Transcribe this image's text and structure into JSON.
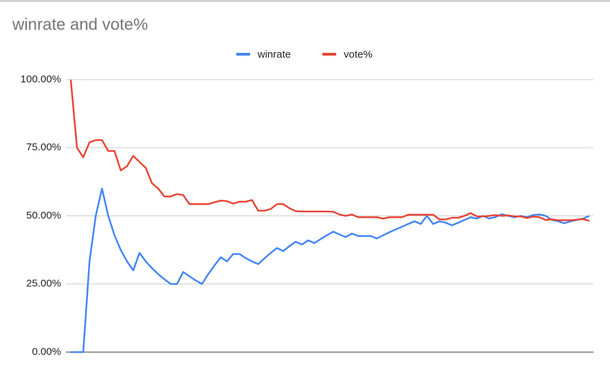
{
  "chart_data": {
    "type": "line",
    "title": "winrate and vote%",
    "categories": [
      null,
      null,
      null,
      null,
      null,
      null,
      null,
      null,
      null,
      null,
      null,
      null,
      null,
      null,
      null,
      null,
      null,
      null,
      null,
      null,
      null,
      null,
      null,
      null,
      null,
      null,
      null,
      null,
      null,
      null,
      null,
      null,
      null,
      null,
      null,
      null,
      null,
      null,
      null,
      null,
      null,
      null,
      null,
      null,
      null,
      null,
      null,
      null,
      null,
      null,
      null,
      null,
      null,
      null,
      null,
      null,
      null,
      null,
      null,
      null,
      null,
      null,
      null,
      null,
      null,
      null,
      null,
      null,
      null,
      null,
      null,
      null,
      null,
      null,
      null,
      null,
      null,
      null,
      null,
      null,
      null,
      null,
      null,
      null
    ],
    "series": [
      {
        "name": "winrate",
        "color": "#4285f4",
        "values": [
          0,
          0,
          0,
          33.3,
          50,
          60,
          50,
          42.9,
          37.5,
          33.3,
          30,
          36.4,
          33.3,
          30.8,
          28.6,
          26.7,
          25,
          25,
          29.4,
          27.8,
          26.3,
          25,
          28.6,
          31.8,
          34.8,
          33.3,
          36,
          36,
          34.5,
          33.3,
          32.3,
          34.4,
          36.4,
          38.2,
          37.1,
          38.9,
          40.5,
          39.5,
          41,
          40,
          41.5,
          42.9,
          44.2,
          43.2,
          42.2,
          43.5,
          42.6,
          42.6,
          42.6,
          41.7,
          42.9,
          44,
          45,
          46,
          47,
          48,
          47,
          50,
          47,
          48,
          47.5,
          46.5,
          47.5,
          48.5,
          49.5,
          49,
          50,
          49,
          49.6,
          50.6,
          50,
          49.5,
          50,
          49.5,
          50.3,
          50.5,
          50,
          48.5,
          48,
          47.3,
          48,
          48.5,
          49,
          50
        ]
      },
      {
        "name": "vote%",
        "color": "#ea4335",
        "values": [
          100,
          75,
          71.5,
          77,
          77.8,
          77.8,
          73.8,
          73.8,
          66.7,
          68.2,
          72,
          69.8,
          67.6,
          62,
          60,
          57.1,
          57.1,
          58,
          57.6,
          54.3,
          54.3,
          54.3,
          54.3,
          55,
          55.6,
          55.4,
          54.5,
          55.2,
          55.2,
          55.8,
          51.9,
          51.9,
          52.5,
          54.3,
          54.3,
          52.8,
          51.7,
          51.6,
          51.6,
          51.6,
          51.6,
          51.6,
          51.5,
          50.5,
          50,
          50.5,
          49.5,
          49.5,
          49.5,
          49.5,
          49,
          49.5,
          49.5,
          49.5,
          50.4,
          50.4,
          50.4,
          50.4,
          50.4,
          48.7,
          48.7,
          49.3,
          49.3,
          50,
          51,
          49.8,
          49.8,
          50,
          50.3,
          50,
          50.2,
          49.8,
          49.8,
          49.2,
          49.7,
          49.5,
          48.5,
          48.7,
          48.4,
          48.4,
          48.4,
          48.6,
          48.8,
          48.2
        ]
      }
    ],
    "ylim": [
      0,
      100
    ],
    "yticks": [
      {
        "value": 0,
        "label": "0.00%"
      },
      {
        "value": 25,
        "label": "25.00%"
      },
      {
        "value": 50,
        "label": "50.00%"
      },
      {
        "value": 75,
        "label": "75.00%"
      },
      {
        "value": 100,
        "label": "100.00%"
      }
    ],
    "grid": true,
    "legend": "top"
  }
}
